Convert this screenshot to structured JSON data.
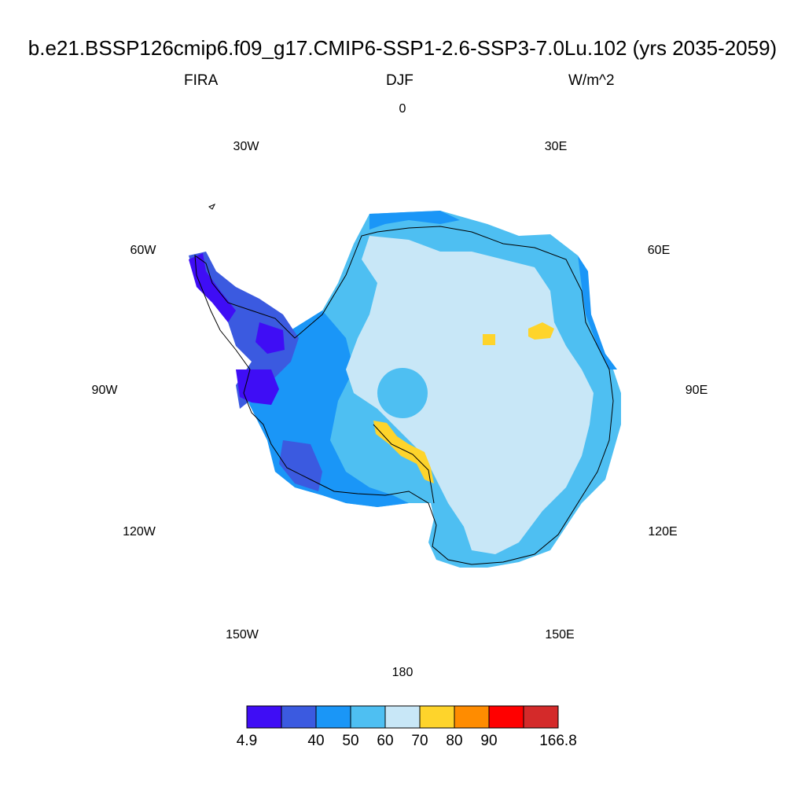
{
  "title": "b.e21.BSSP126cmip6.f09_g17.CMIP6-SSP1-2.6-SSP3-7.0Lu.102 (yrs 2035-2059)",
  "variable": "FIRA",
  "season": "DJF",
  "units": "W/m^2",
  "longitude_labels": [
    "0",
    "30E",
    "60E",
    "90E",
    "120E",
    "150E",
    "180",
    "150W",
    "120W",
    "90W",
    "60W",
    "30W"
  ],
  "colorbar": {
    "colors": [
      "#3f0df5",
      "#3b5ae0",
      "#1a96f7",
      "#4ebff2",
      "#c8e7f7",
      "#fed42b",
      "#ff8c00",
      "#ff0000",
      "#d42a2a"
    ],
    "labels": [
      "4.9",
      "40",
      "50",
      "60",
      "70",
      "80",
      "90",
      "166.8"
    ],
    "label_positions": [
      0,
      2,
      3,
      4,
      5,
      6,
      7,
      9
    ]
  }
}
